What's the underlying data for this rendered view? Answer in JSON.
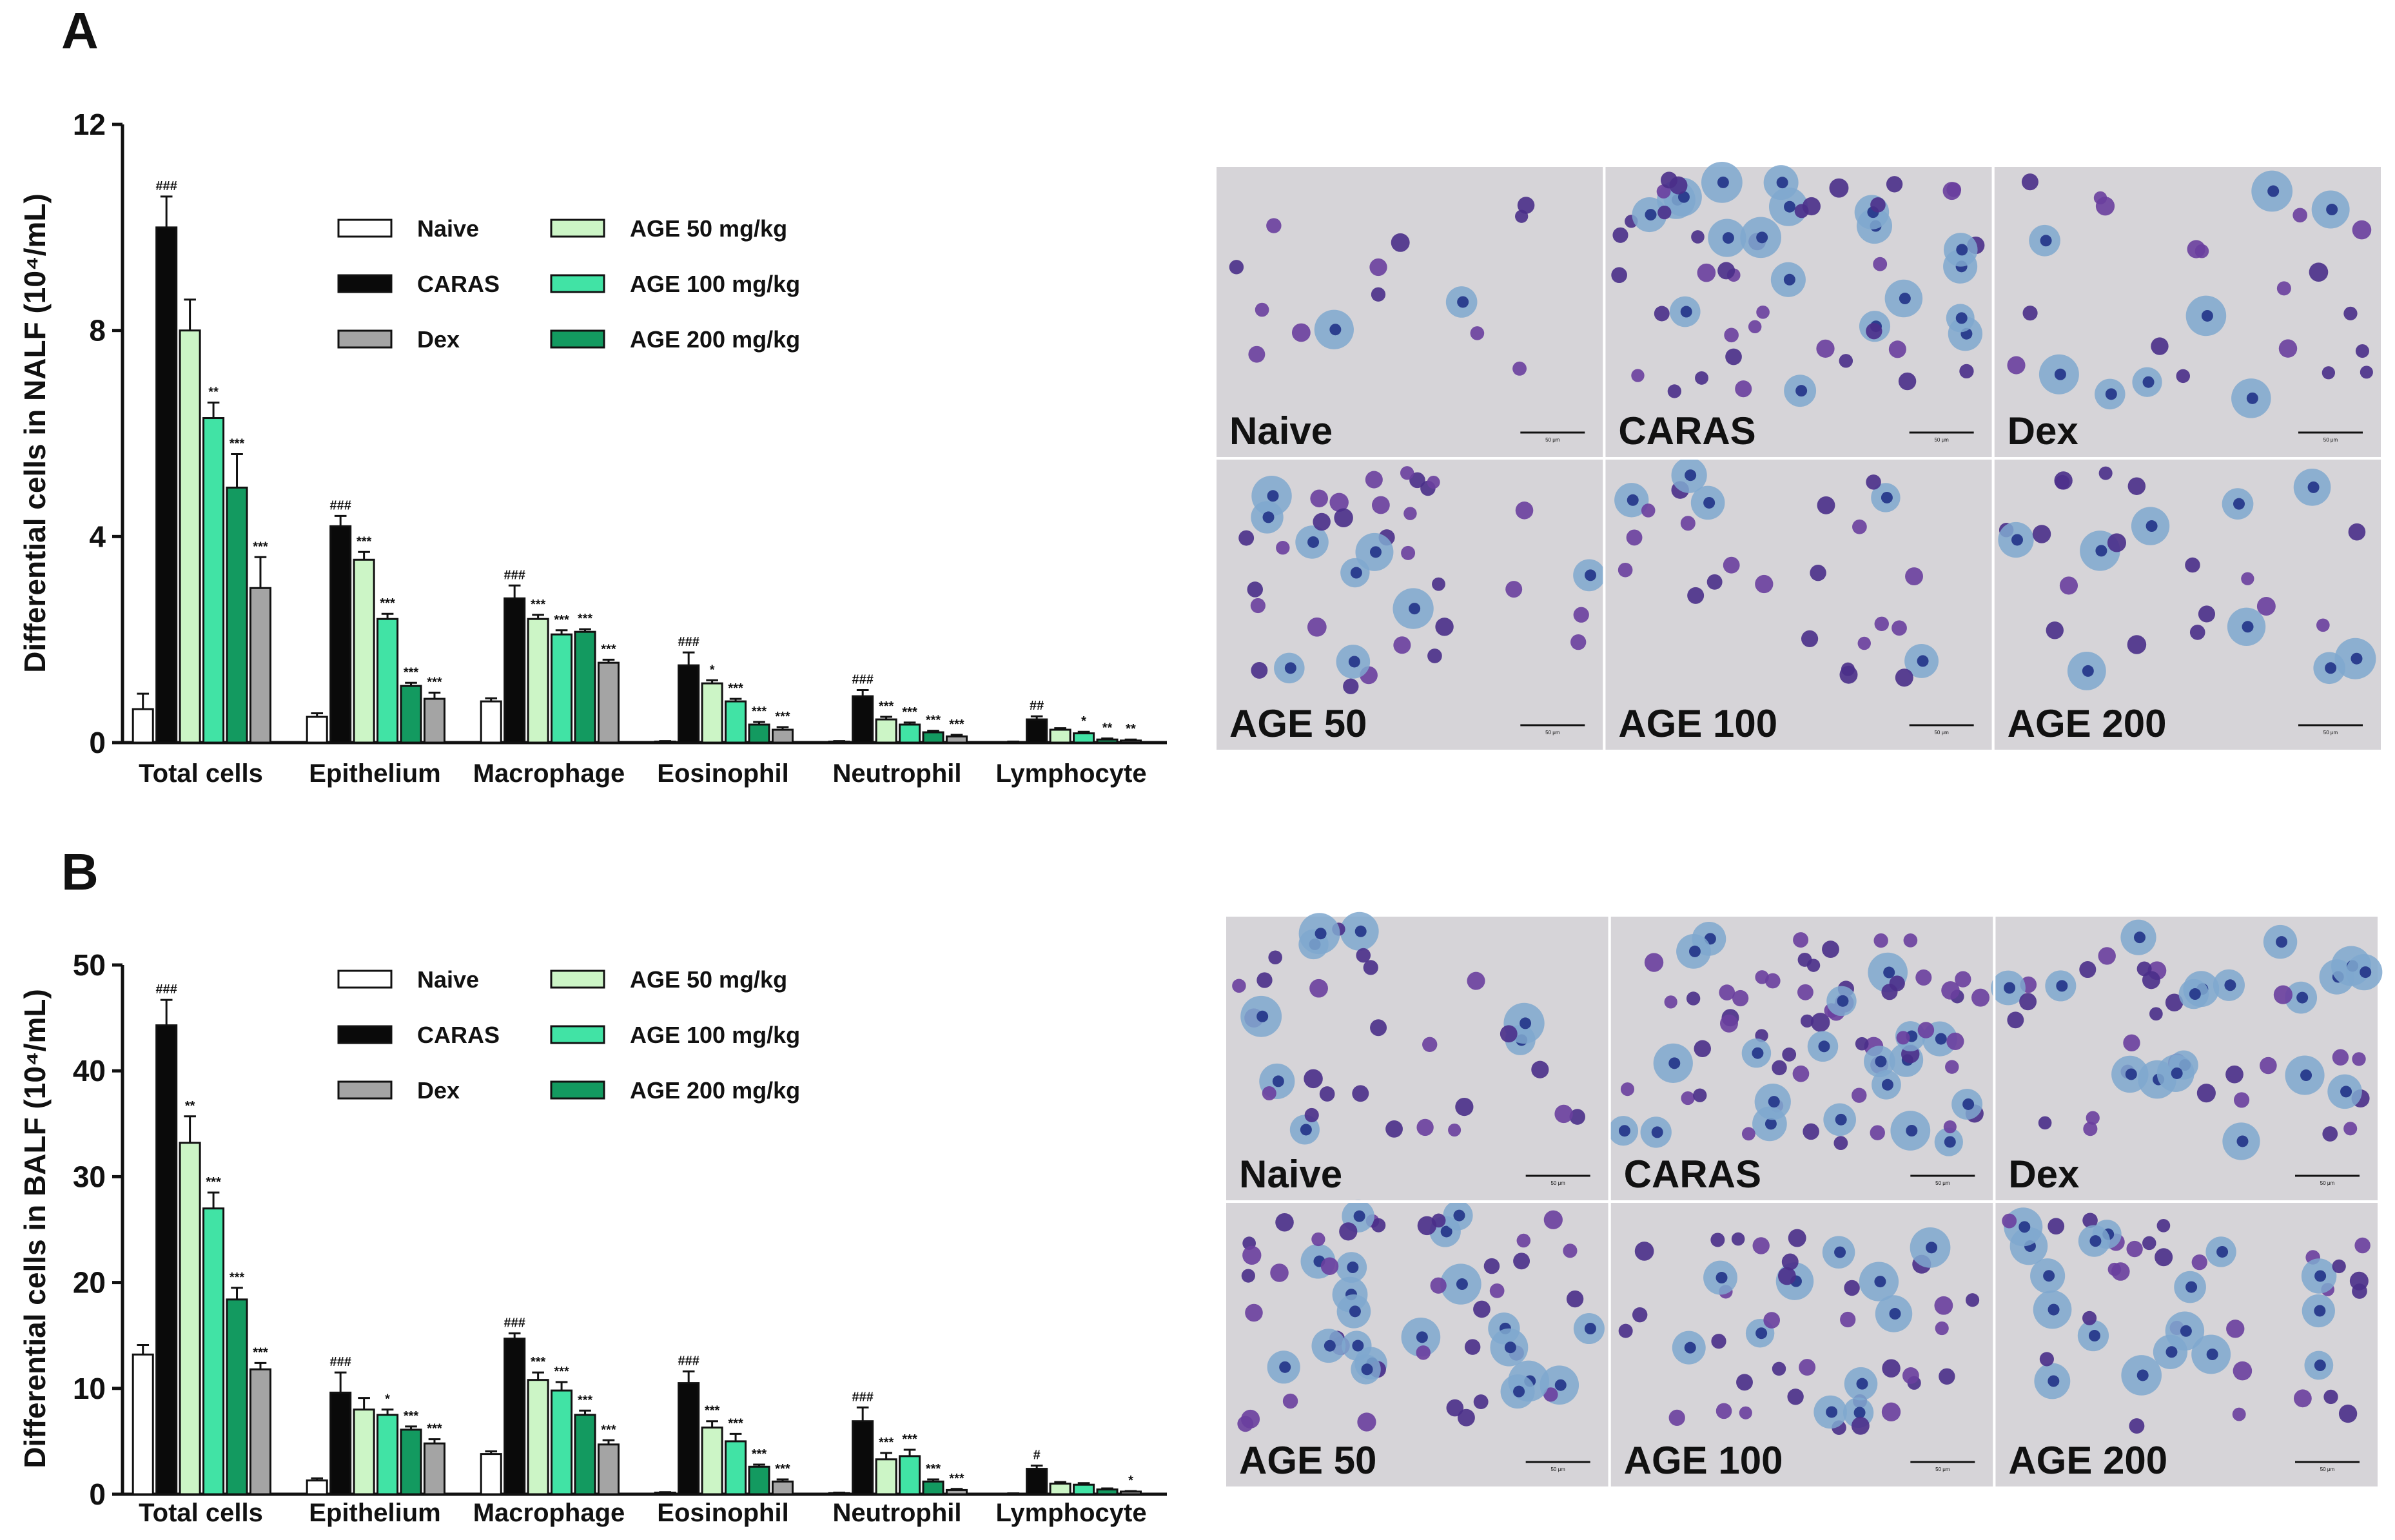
{
  "colors": {
    "Naive": "#ffffff",
    "CARAS": "#0a0a0a",
    "Dex": "#a4a4a4",
    "AGE 50 mg/kg": "#ccf5c6",
    "AGE 100 mg/kg": "#41e3a5",
    "AGE 200 mg/kg": "#139a60"
  },
  "panels": [
    {
      "id": "A",
      "letter": "A",
      "chart_data": {
        "type": "bar",
        "ylabel": "Differential cells in NALF (10⁴/mL)",
        "ylim": [
          0,
          12
        ],
        "yticks": [
          "0",
          "4",
          "8",
          "12"
        ],
        "categories": [
          "Total cells",
          "Epithelium",
          "Macrophage",
          "Eosinophil",
          "Neutrophil",
          "Lymphocyte"
        ],
        "legend": [
          "Naive",
          "CARAS",
          "Dex",
          "AGE 50 mg/kg",
          "AGE 100 mg/kg",
          "AGE 200 mg/kg"
        ],
        "series": [
          {
            "name": "Naive",
            "values": [
              0.65,
              0.5,
              0.8,
              0.02,
              0.02,
              0.01
            ],
            "errors": [
              0.3,
              0.07,
              0.06,
              0.01,
              0.01,
              0.01
            ],
            "sig": [
              "",
              "",
              "",
              "",
              "",
              ""
            ]
          },
          {
            "name": "CARAS",
            "values": [
              10.0,
              4.2,
              2.8,
              1.5,
              0.9,
              0.45
            ],
            "errors": [
              0.6,
              0.2,
              0.25,
              0.25,
              0.12,
              0.06
            ],
            "sig": [
              "###",
              "###",
              "###",
              "###",
              "###",
              "##"
            ]
          },
          {
            "name": "AGE 50 mg/kg",
            "values": [
              8.0,
              3.55,
              2.4,
              1.15,
              0.45,
              0.25
            ],
            "errors": [
              0.6,
              0.15,
              0.08,
              0.06,
              0.05,
              0.03
            ],
            "sig": [
              "",
              "***",
              "***",
              "*",
              "***",
              ""
            ]
          },
          {
            "name": "AGE 100 mg/kg",
            "values": [
              6.3,
              2.4,
              2.1,
              0.8,
              0.35,
              0.18
            ],
            "errors": [
              0.3,
              0.1,
              0.08,
              0.05,
              0.04,
              0.03
            ],
            "sig": [
              "**",
              "***",
              "***",
              "***",
              "***",
              "*"
            ]
          },
          {
            "name": "AGE 200 mg/kg",
            "values": [
              4.95,
              1.1,
              2.15,
              0.35,
              0.2,
              0.06
            ],
            "errors": [
              0.65,
              0.06,
              0.05,
              0.05,
              0.03,
              0.02
            ],
            "sig": [
              "***",
              "***",
              "***",
              "***",
              "***",
              "**"
            ]
          },
          {
            "name": "Dex",
            "values": [
              3.0,
              0.85,
              1.55,
              0.25,
              0.12,
              0.04
            ],
            "errors": [
              0.6,
              0.12,
              0.06,
              0.05,
              0.03,
              0.02
            ],
            "sig": [
              "***",
              "***",
              "***",
              "***",
              "***",
              "**"
            ]
          }
        ]
      },
      "micrographs": [
        "Naive",
        "CARAS",
        "Dex",
        "AGE 50",
        "AGE 100",
        "AGE 200"
      ],
      "scale_text": "50 μm"
    },
    {
      "id": "B",
      "letter": "B",
      "chart_data": {
        "type": "bar",
        "ylabel": "Differential cells in BALF (10⁴/mL)",
        "ylim": [
          0,
          50
        ],
        "yticks": [
          "0",
          "10",
          "20",
          "30",
          "40",
          "50"
        ],
        "categories": [
          "Total cells",
          "Epithelium",
          "Macrophage",
          "Eosinophil",
          "Neutrophil",
          "Lymphocyte"
        ],
        "legend": [
          "Naive",
          "CARAS",
          "Dex",
          "AGE 50 mg/kg",
          "AGE 100 mg/kg",
          "AGE 200 mg/kg"
        ],
        "series": [
          {
            "name": "Naive",
            "values": [
              13.2,
              1.3,
              3.8,
              0.15,
              0.1,
              0.05
            ],
            "errors": [
              0.9,
              0.2,
              0.25,
              0.05,
              0.05,
              0.03
            ],
            "sig": [
              "",
              "",
              "",
              "",
              "",
              ""
            ]
          },
          {
            "name": "CARAS",
            "values": [
              44.3,
              9.6,
              14.7,
              10.5,
              6.9,
              2.4
            ],
            "errors": [
              2.4,
              1.9,
              0.5,
              1.1,
              1.3,
              0.3
            ],
            "sig": [
              "###",
              "###",
              "###",
              "###",
              "###",
              "#"
            ]
          },
          {
            "name": "AGE 50 mg/kg",
            "values": [
              33.2,
              8.0,
              10.8,
              6.3,
              3.3,
              1.0
            ],
            "errors": [
              2.5,
              1.1,
              0.7,
              0.6,
              0.6,
              0.15
            ],
            "sig": [
              "**",
              "",
              "***",
              "***",
              "***",
              ""
            ]
          },
          {
            "name": "AGE 100 mg/kg",
            "values": [
              27.0,
              7.5,
              9.8,
              5.0,
              3.6,
              0.9
            ],
            "errors": [
              1.5,
              0.5,
              0.8,
              0.7,
              0.6,
              0.15
            ],
            "sig": [
              "***",
              "*",
              "***",
              "***",
              "***",
              ""
            ]
          },
          {
            "name": "AGE 200 mg/kg",
            "values": [
              18.4,
              6.1,
              7.5,
              2.6,
              1.2,
              0.45
            ],
            "errors": [
              1.1,
              0.3,
              0.4,
              0.2,
              0.2,
              0.1
            ],
            "sig": [
              "***",
              "***",
              "***",
              "***",
              "***",
              ""
            ]
          },
          {
            "name": "Dex",
            "values": [
              11.8,
              4.8,
              4.7,
              1.2,
              0.4,
              0.25
            ],
            "errors": [
              0.6,
              0.4,
              0.4,
              0.2,
              0.1,
              0.05
            ],
            "sig": [
              "***",
              "***",
              "***",
              "***",
              "***",
              "*"
            ]
          }
        ]
      },
      "micrographs": [
        "Naive",
        "CARAS",
        "Dex",
        "AGE 50",
        "AGE 100",
        "AGE 200"
      ],
      "scale_text": "50 μm"
    }
  ]
}
